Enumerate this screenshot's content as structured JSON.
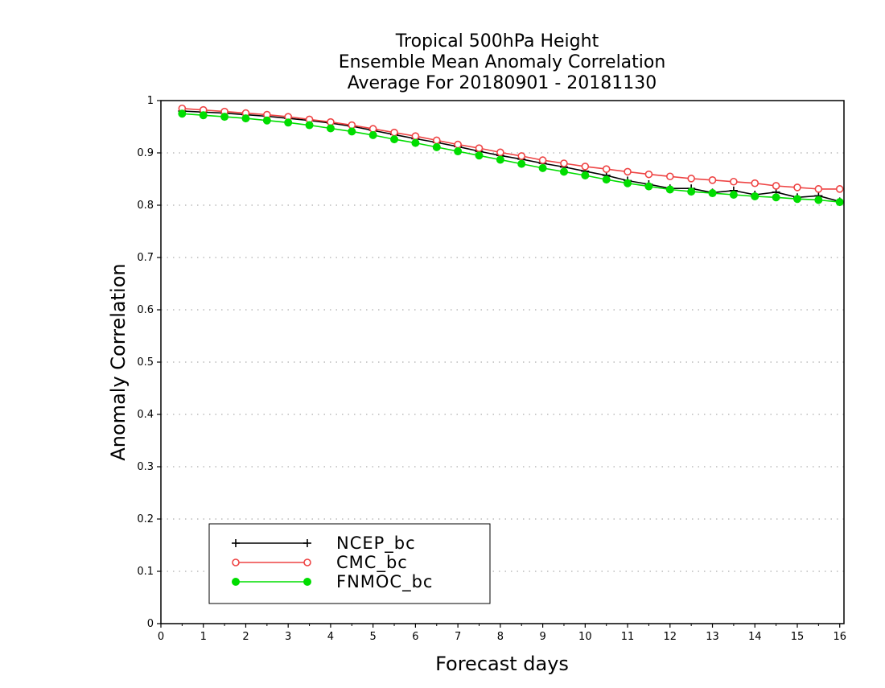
{
  "chart_data": {
    "type": "line",
    "title": [
      "Tropical 500hPa Height",
      "Ensemble Mean Anomaly Correlation",
      "Average For 20180901 - 20181130"
    ],
    "xlabel": "Forecast days",
    "ylabel": "Anomaly Correlation",
    "xlim": [
      0,
      16.1
    ],
    "ylim": [
      0,
      1
    ],
    "xticks": [
      "0",
      "1",
      "2",
      "3",
      "4",
      "5",
      "6",
      "7",
      "8",
      "9",
      "10",
      "11",
      "12",
      "13",
      "14",
      "15",
      "16"
    ],
    "yticks": [
      "0",
      "0.1",
      "0.2",
      "0.3",
      "0.4",
      "0.5",
      "0.6",
      "0.7",
      "0.8",
      "0.9",
      "1"
    ],
    "grid": true,
    "legend_position": "bottom-left",
    "x": [
      0.5,
      1,
      1.5,
      2,
      2.5,
      3,
      3.5,
      4,
      4.5,
      5,
      5.5,
      6,
      6.5,
      7,
      7.5,
      8,
      8.5,
      9,
      9.5,
      10,
      10.5,
      11,
      11.5,
      12,
      12.5,
      13,
      13.5,
      14,
      14.5,
      15,
      15.5,
      16
    ],
    "series": [
      {
        "name": "NCEP_bc",
        "color": "#000000",
        "marker": "plus",
        "values": [
          0.98,
          0.978,
          0.976,
          0.973,
          0.97,
          0.966,
          0.962,
          0.957,
          0.951,
          0.943,
          0.935,
          0.927,
          0.92,
          0.912,
          0.903,
          0.895,
          0.888,
          0.88,
          0.873,
          0.865,
          0.857,
          0.847,
          0.84,
          0.832,
          0.832,
          0.824,
          0.828,
          0.82,
          0.825,
          0.815,
          0.818,
          0.807
        ]
      },
      {
        "name": "CMC_bc",
        "color": "#ee4444",
        "marker": "open-circle",
        "values": [
          0.985,
          0.982,
          0.979,
          0.976,
          0.973,
          0.969,
          0.964,
          0.959,
          0.953,
          0.946,
          0.939,
          0.932,
          0.924,
          0.916,
          0.909,
          0.901,
          0.894,
          0.886,
          0.88,
          0.874,
          0.869,
          0.864,
          0.859,
          0.855,
          0.851,
          0.848,
          0.845,
          0.842,
          0.837,
          0.834,
          0.831,
          0.831
        ]
      },
      {
        "name": "FNMOC_bc",
        "color": "#00dd00",
        "marker": "filled-circle",
        "values": [
          0.975,
          0.972,
          0.969,
          0.966,
          0.962,
          0.958,
          0.953,
          0.947,
          0.941,
          0.934,
          0.926,
          0.919,
          0.911,
          0.903,
          0.895,
          0.887,
          0.879,
          0.871,
          0.864,
          0.857,
          0.849,
          0.842,
          0.836,
          0.83,
          0.826,
          0.823,
          0.82,
          0.817,
          0.815,
          0.812,
          0.81,
          0.806
        ]
      }
    ]
  }
}
